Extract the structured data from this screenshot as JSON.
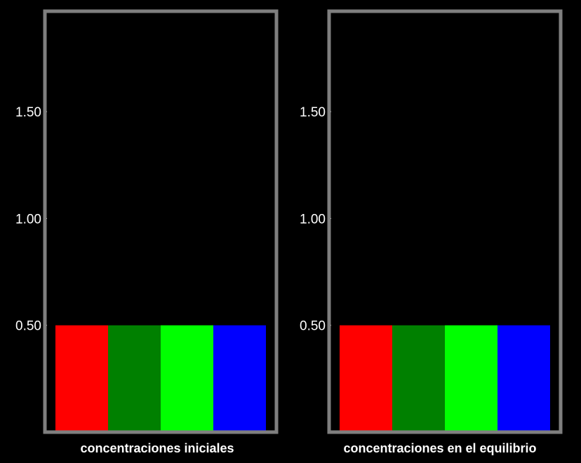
{
  "colors": {
    "background": "#000000",
    "frame": "#7f7f7f",
    "text": "#ffffff"
  },
  "chart_data": [
    {
      "type": "bar",
      "title": "concentraciones iniciales",
      "ylim": [
        0,
        1.97
      ],
      "yticks": [
        0.5,
        1.0,
        1.5
      ],
      "ytick_labels": [
        "0.50",
        "1.00",
        "1.50"
      ],
      "grid": false,
      "categories": [
        "",
        "",
        "",
        ""
      ],
      "values": [
        0.5,
        0.5,
        0.5,
        0.5
      ],
      "bar_colors": [
        "#ff0000",
        "#008000",
        "#00ff00",
        "#0000ff"
      ]
    },
    {
      "type": "bar",
      "title": "concentraciones en el equilibrio",
      "ylim": [
        0,
        1.97
      ],
      "yticks": [
        0.5,
        1.0,
        1.5
      ],
      "ytick_labels": [
        "0.50",
        "1.00",
        "1.50"
      ],
      "grid": false,
      "categories": [
        "",
        "",
        "",
        ""
      ],
      "values": [
        0.5,
        0.5,
        0.5,
        0.5
      ],
      "bar_colors": [
        "#ff0000",
        "#008000",
        "#00ff00",
        "#0000ff"
      ]
    }
  ]
}
